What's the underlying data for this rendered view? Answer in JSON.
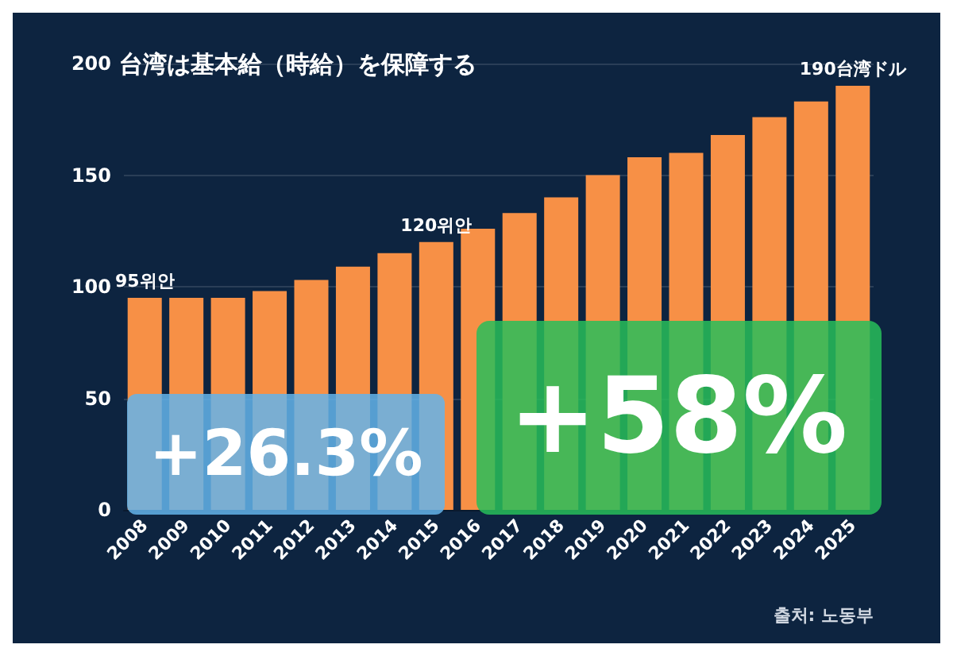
{
  "chart_data": {
    "type": "bar",
    "title": "台湾は基本給（時給）を保障する",
    "categories": [
      "2008",
      "2009",
      "2010",
      "2011",
      "2012",
      "2013",
      "2014",
      "2015",
      "2016",
      "2017",
      "2018",
      "2019",
      "2020",
      "2021",
      "2022",
      "2023",
      "2024",
      "2025"
    ],
    "values": [
      95,
      95,
      95,
      98,
      103,
      109,
      115,
      120,
      126,
      133,
      140,
      150,
      158,
      160,
      168,
      176,
      183,
      190
    ],
    "value_labels": [
      "95위안",
      null,
      null,
      null,
      null,
      null,
      null,
      "120위안",
      null,
      null,
      null,
      null,
      null,
      null,
      null,
      null,
      null,
      "190台湾ドル"
    ],
    "color": "#f79046",
    "ylim": [
      0,
      200
    ],
    "yticks": [
      0,
      50,
      100,
      150,
      200
    ],
    "grid": "y",
    "annotations": [
      "+26.3%",
      "+58%",
      "출처: 노동부"
    ]
  }
}
